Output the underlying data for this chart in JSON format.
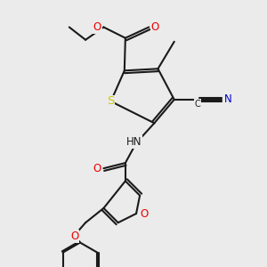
{
  "bg_color": "#ebebeb",
  "bond_color": "#1a1a1a",
  "bond_lw": 1.5,
  "dbo": 0.028,
  "atom_colors": {
    "S": "#cccc00",
    "O": "#ee0000",
    "N": "#0000cc",
    "C": "#1a1a1a"
  },
  "fs": 8.5,
  "fig_w": 3.0,
  "fig_h": 3.0,
  "dpi": 100,
  "xlim": [
    0.3,
    2.8
  ],
  "ylim": [
    0.05,
    3.0
  ]
}
